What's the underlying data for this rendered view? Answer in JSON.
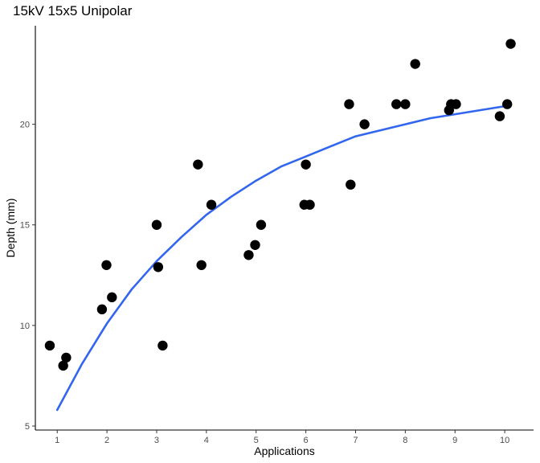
{
  "chart_data": {
    "type": "scatter",
    "title": "15kV 15x5 Unipolar",
    "xlabel": "Applications",
    "ylabel": "Depth (mm)",
    "xlim": [
      0.56,
      10.58
    ],
    "ylim": [
      4.8,
      24.9
    ],
    "x_ticks": [
      1,
      2,
      3,
      4,
      5,
      6,
      7,
      8,
      9,
      10
    ],
    "y_ticks": [
      5,
      10,
      15,
      20
    ],
    "grid": false,
    "legend": "none",
    "colors": {
      "points": "#000000",
      "fit_line": "#3366ee",
      "axis": "#000000",
      "tick_text": "#4d4d4d"
    },
    "points": [
      {
        "x": 0.85,
        "y": 9.0
      },
      {
        "x": 1.12,
        "y": 8.0
      },
      {
        "x": 1.18,
        "y": 8.4
      },
      {
        "x": 1.9,
        "y": 10.8
      },
      {
        "x": 1.99,
        "y": 13.0
      },
      {
        "x": 2.1,
        "y": 11.4
      },
      {
        "x": 3.0,
        "y": 15.0
      },
      {
        "x": 3.03,
        "y": 12.9
      },
      {
        "x": 3.12,
        "y": 9.0
      },
      {
        "x": 3.83,
        "y": 18.0
      },
      {
        "x": 3.9,
        "y": 13.0
      },
      {
        "x": 4.1,
        "y": 16.0
      },
      {
        "x": 4.85,
        "y": 13.5
      },
      {
        "x": 4.98,
        "y": 14.0
      },
      {
        "x": 5.1,
        "y": 15.0
      },
      {
        "x": 5.97,
        "y": 16.0
      },
      {
        "x": 6.0,
        "y": 18.0
      },
      {
        "x": 6.08,
        "y": 16.0
      },
      {
        "x": 6.87,
        "y": 21.0
      },
      {
        "x": 6.9,
        "y": 17.0
      },
      {
        "x": 7.18,
        "y": 20.0
      },
      {
        "x": 7.82,
        "y": 21.0
      },
      {
        "x": 8.0,
        "y": 21.0
      },
      {
        "x": 8.2,
        "y": 23.0
      },
      {
        "x": 8.88,
        "y": 20.7
      },
      {
        "x": 8.92,
        "y": 21.0
      },
      {
        "x": 9.02,
        "y": 21.0
      },
      {
        "x": 9.9,
        "y": 20.4
      },
      {
        "x": 10.05,
        "y": 21.0
      },
      {
        "x": 10.12,
        "y": 24.0
      }
    ],
    "fit_line": {
      "x": [
        1.0,
        1.5,
        2.0,
        2.5,
        3.0,
        3.5,
        4.0,
        4.5,
        5.0,
        5.5,
        6.0,
        6.5,
        7.0,
        7.5,
        8.0,
        8.5,
        9.0,
        9.5,
        10.0
      ],
      "y": [
        5.8,
        8.1,
        10.1,
        11.8,
        13.2,
        14.4,
        15.5,
        16.4,
        17.2,
        17.9,
        18.4,
        18.9,
        19.4,
        19.7,
        20.0,
        20.3,
        20.5,
        20.7,
        20.9
      ]
    }
  }
}
